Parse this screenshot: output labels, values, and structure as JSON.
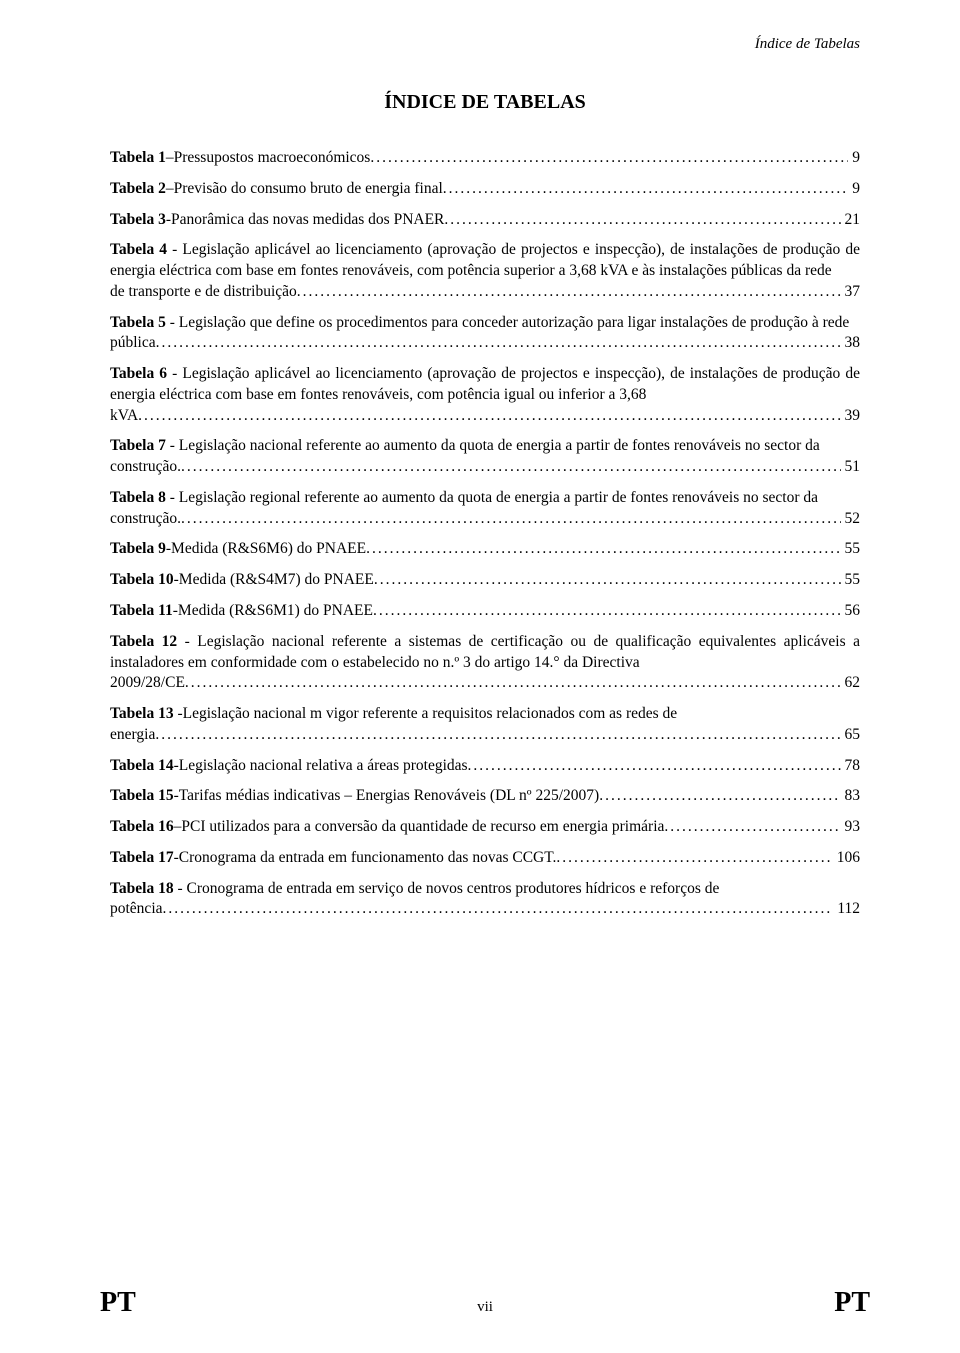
{
  "running_header": "Índice de Tabelas",
  "title": "ÍNDICE DE TABELAS",
  "entries": [
    {
      "lead": "Tabela 1",
      "sep": " – ",
      "pre": "",
      "tail": "Pressupostos macroeconómicos",
      "page": "9"
    },
    {
      "lead": "Tabela 2",
      "sep": " – ",
      "pre": "",
      "tail": "Previsão do consumo bruto de energia final",
      "page": "9"
    },
    {
      "lead": "Tabela 3",
      "sep": " - ",
      "pre": "",
      "tail": "Panorâmica das novas medidas dos PNAER",
      "page": "21"
    },
    {
      "lead": "Tabela 4",
      "sep": " - ",
      "pre": "Legislação aplicável ao licenciamento (aprovação de projectos e inspecção), de instalações de produção de energia eléctrica com base em fontes renováveis, com potência superior a 3,68 kVA e às instalações públicas da rede ",
      "tail": "de transporte e de distribuição",
      "page": "37"
    },
    {
      "lead": "Tabela 5",
      "sep": " - ",
      "pre": "Legislação que define os procedimentos para conceder autorização para ligar instalações de produção à rede ",
      "tail": "pública",
      "page": "38"
    },
    {
      "lead": "Tabela 6",
      "sep": " - ",
      "pre": "Legislação aplicável ao licenciamento (aprovação de projectos e inspecção), de instalações de produção de energia eléctrica com base em fontes renováveis, com potência igual ou inferior a 3,68 ",
      "tail": "kVA",
      "page": "39"
    },
    {
      "lead": "Tabela 7",
      "sep": " - ",
      "pre": "Legislação nacional referente ao aumento da quota de energia a partir de fontes renováveis no sector da ",
      "tail": "construção.",
      "page": "51"
    },
    {
      "lead": "Tabela 8",
      "sep": " - ",
      "pre": "Legislação regional referente ao aumento da quota de energia a partir de fontes renováveis no sector da ",
      "tail": "construção.",
      "page": "52"
    },
    {
      "lead": "Tabela 9",
      "sep": " - ",
      "pre": "",
      "tail": "Medida (R&S6M6) do PNAEE",
      "page": "55"
    },
    {
      "lead": "Tabela 10",
      "sep": " - ",
      "pre": "",
      "tail": "Medida (R&S4M7) do PNAEE",
      "page": "55"
    },
    {
      "lead": "Tabela 11",
      "sep": " - ",
      "pre": "",
      "tail": "Medida (R&S6M1) do PNAEE",
      "page": "56"
    },
    {
      "lead": "Tabela 12",
      "sep": " - ",
      "pre": "Legislação nacional referente a sistemas de certificação ou de qualificação equivalentes aplicáveis a instaladores em conformidade com o estabelecido no n.º 3 do artigo 14.° da Directiva ",
      "tail": "2009/28/CE",
      "page": "62"
    },
    {
      "lead": "Tabela 13",
      "sep": " -",
      "pre": "Legislação nacional m vigor referente a requisitos relacionados com as redes de ",
      "tail": "energia",
      "page": "65"
    },
    {
      "lead": "Tabela 14",
      "sep": " - ",
      "pre": "",
      "tail": "Legislação nacional relativa a áreas protegidas",
      "page": "78"
    },
    {
      "lead": "Tabela 15",
      "sep": " - ",
      "pre": "",
      "tail": "Tarifas médias indicativas – Energias Renováveis (DL nº 225/2007)",
      "page": "83"
    },
    {
      "lead": "Tabela 16",
      "sep": " – ",
      "pre": "",
      "tail": "PCI utilizados para a conversão da quantidade de recurso em energia primária",
      "page": "93"
    },
    {
      "lead": "Tabela 17",
      "sep": " - ",
      "pre": "",
      "tail": "Cronograma da entrada em funcionamento das novas CCGT.",
      "page": "106"
    },
    {
      "lead": "Tabela 18",
      "sep": " - ",
      "pre": "Cronograma de entrada em serviço de novos centros produtores hídricos e reforços de ",
      "tail": "potência",
      "page": "112"
    }
  ],
  "footer": {
    "left": "PT",
    "center": "vii",
    "right": "PT"
  },
  "colors": {
    "text": "#000000",
    "background": "#ffffff"
  },
  "typography": {
    "body_family": "Times New Roman",
    "body_size_pt": 12,
    "title_size_pt": 15,
    "footer_pt_size_pt": 21
  }
}
